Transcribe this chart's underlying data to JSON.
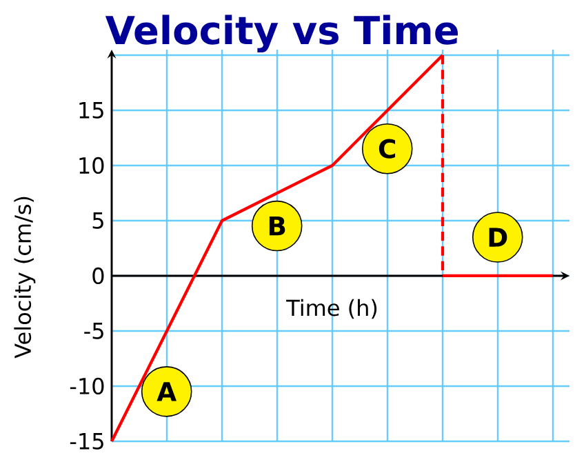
{
  "chart_data": {
    "type": "line",
    "title": "Velocity vs Time",
    "xlabel": "Time (h)",
    "ylabel": "Velocity (cm/s)",
    "categories": [
      null,
      null,
      null,
      null,
      null
    ],
    "ylim": [
      -15,
      20.5
    ],
    "yticks": [
      -15,
      -10,
      -5,
      0,
      5,
      10,
      15,
      {
        "value": 20,
        "label": null
      }
    ],
    "tick_labels": "y",
    "grid": true,
    "series": [
      {
        "values": [
          -15,
          5,
          10,
          20,
          null
        ],
        "color": "#ff0000",
        "line_style": "solid"
      },
      {
        "values": [
          null,
          null,
          null,
          0,
          0
        ],
        "color": "#ff0000",
        "line_style": "solid"
      }
    ],
    "annotations": [
      "A",
      "B",
      "C",
      "D"
    ]
  }
}
